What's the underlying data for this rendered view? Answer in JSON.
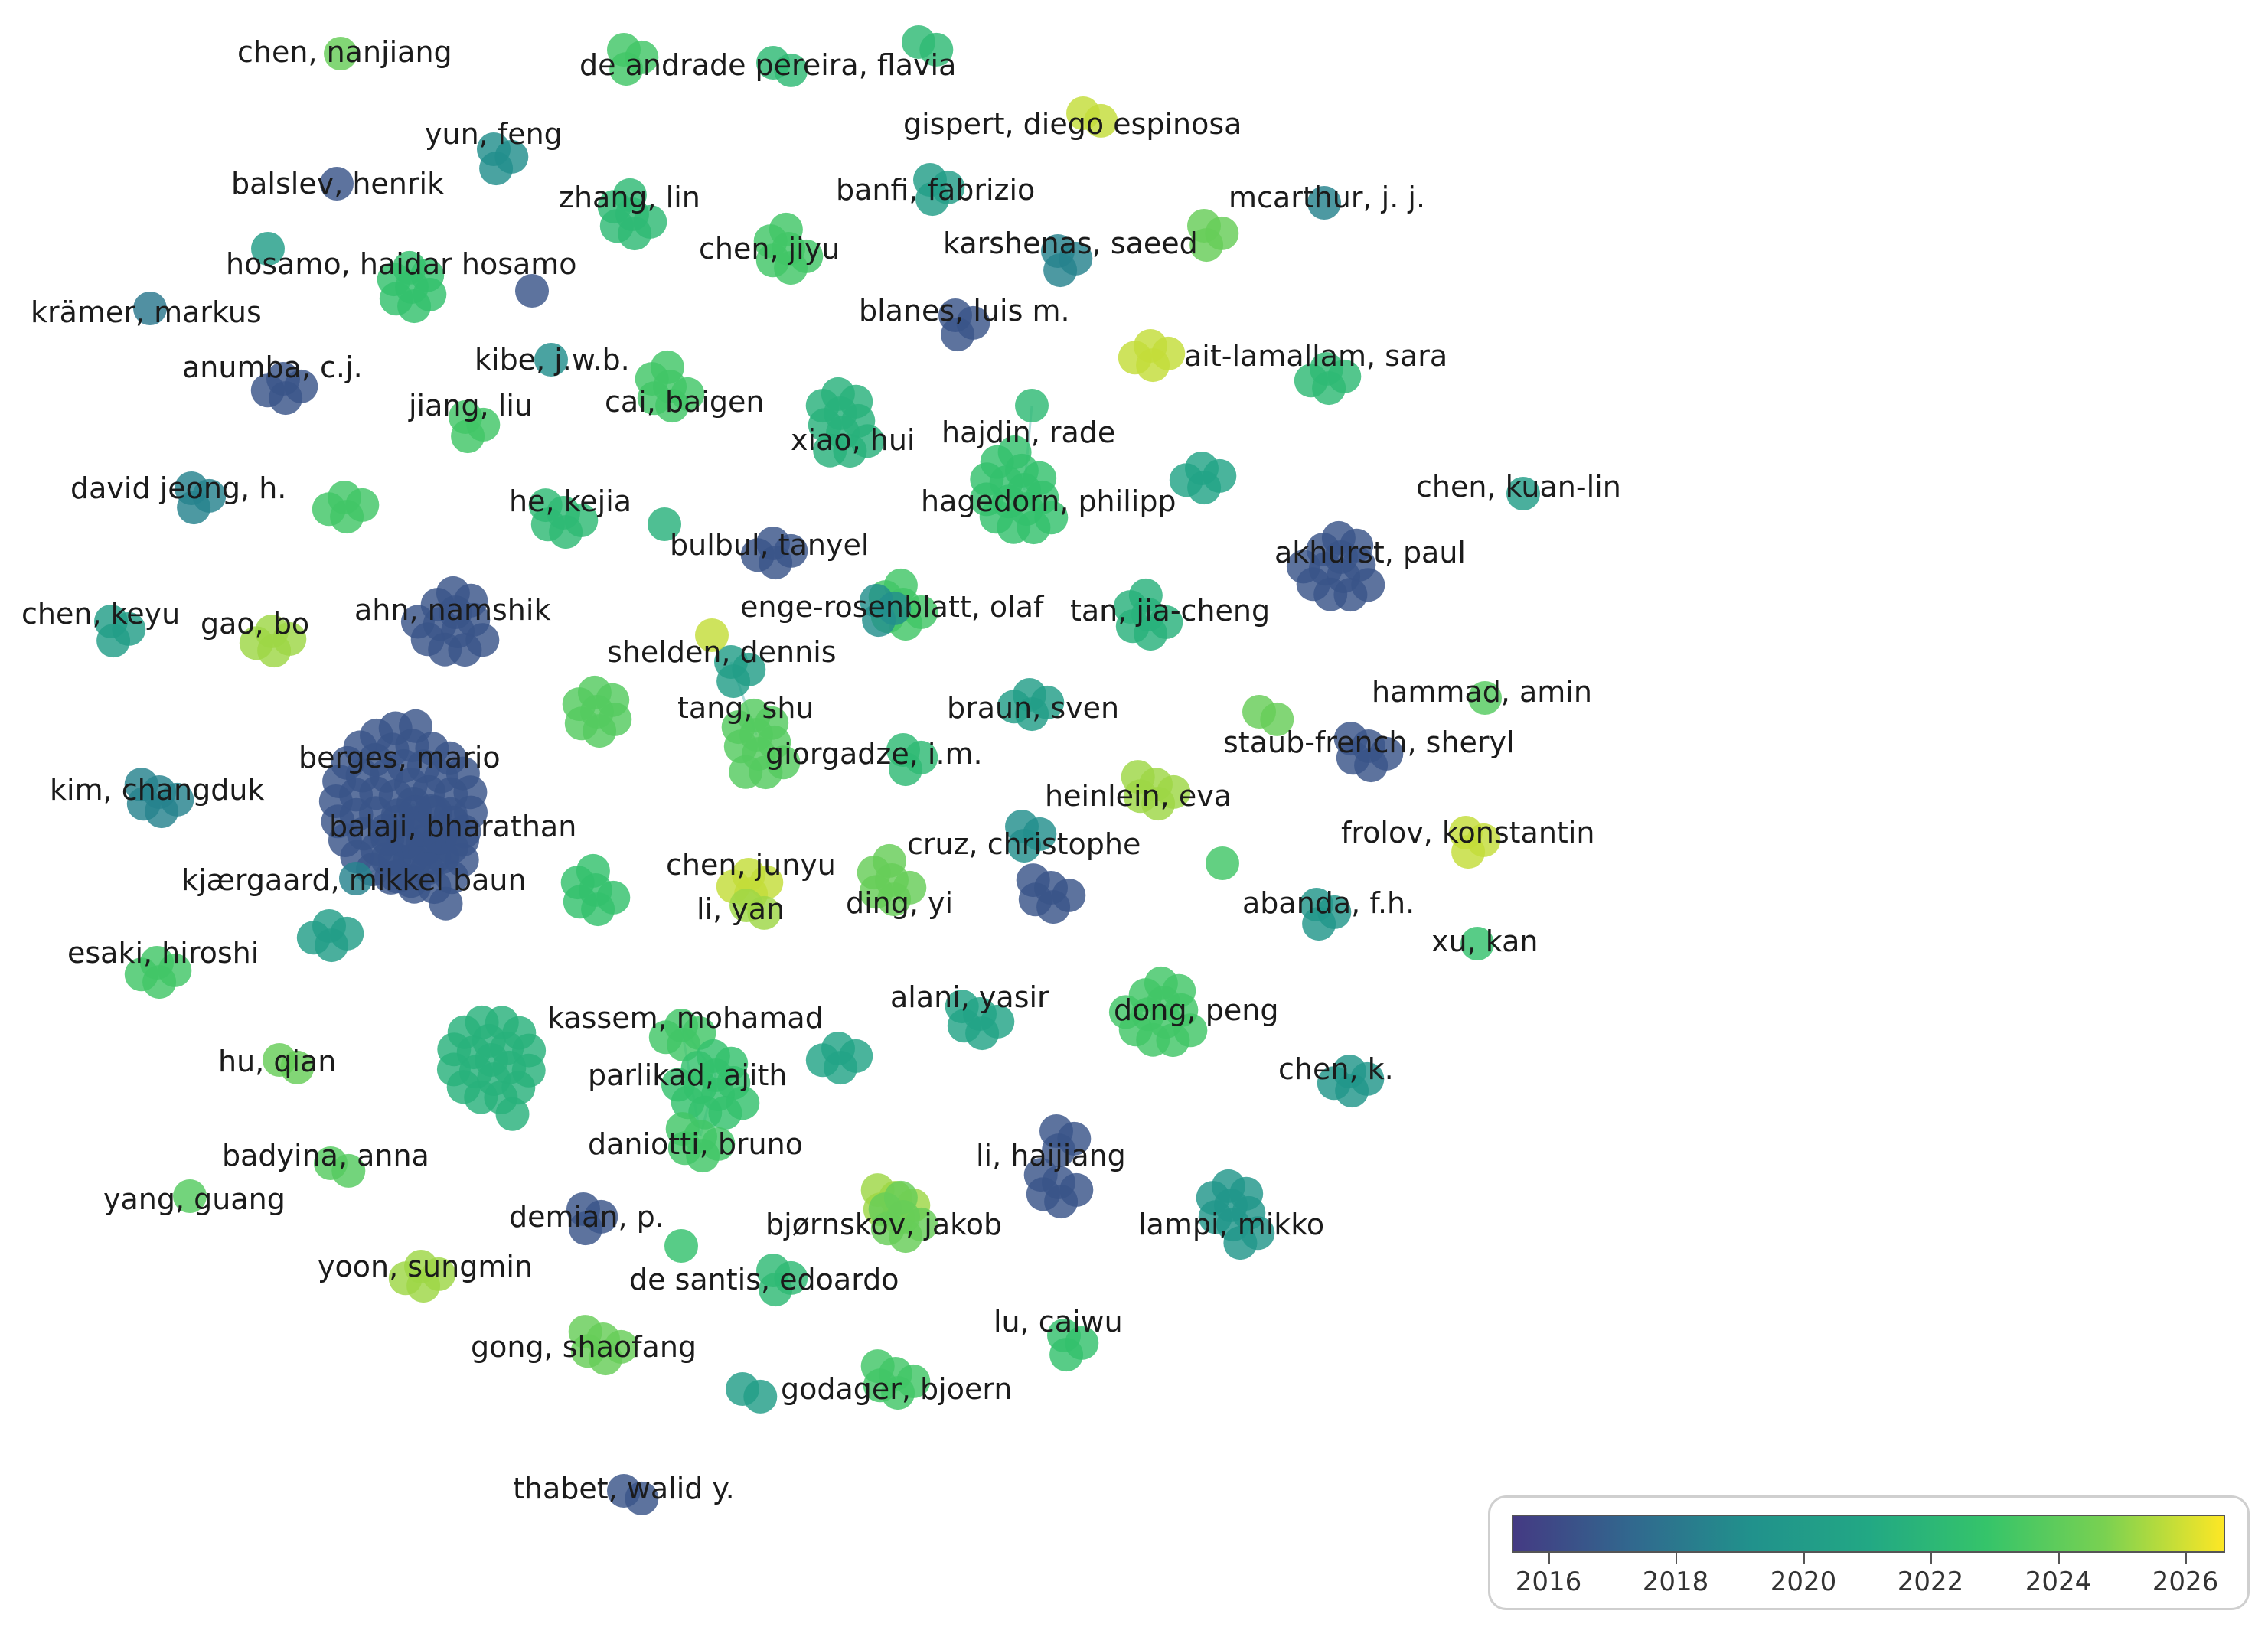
{
  "color_scale": {
    "min_year": 2015.5,
    "max_year": 2026.3,
    "stops": [
      "#443a83",
      "#31688e",
      "#21918c",
      "#22a884",
      "#35c46a",
      "#7ad151",
      "#fde725"
    ]
  },
  "legend": {
    "ticks": [
      "2016",
      "2018",
      "2020",
      "2022",
      "2024",
      "2026"
    ],
    "tick_years": [
      2016,
      2018,
      2020,
      2022,
      2024,
      2026
    ]
  },
  "nodes": [
    {
      "label": "chen, nanjiang",
      "year": 2024
    },
    {
      "label": "de andrade pereira, flavia",
      "year": 2023
    },
    {
      "label": "",
      "year": 2022
    },
    {
      "label": "",
      "year": 2022
    },
    {
      "label": "gispert, diego espinosa",
      "year": 2025.5
    },
    {
      "label": "yun, feng",
      "year": 2019
    },
    {
      "label": "balslev, henrik",
      "year": 2016.5
    },
    {
      "label": "zhang, lin",
      "year": 2022
    },
    {
      "label": "banfi, fabrizio",
      "year": 2020
    },
    {
      "label": "mcarthur, j. j.",
      "year": 2018.5
    },
    {
      "label": "",
      "year": 2024
    },
    {
      "label": "chen, jiyu",
      "year": 2023
    },
    {
      "label": "karshenas, saeed",
      "year": 2018.5
    },
    {
      "label": "",
      "year": 2020
    },
    {
      "label": "hosamo, haidar hosamo",
      "year": 2022.5
    },
    {
      "label": "",
      "year": 2016.5
    },
    {
      "label": "krämer, markus",
      "year": 2018
    },
    {
      "label": "blanes, luis m.",
      "year": 2016.5
    },
    {
      "label": "anumba, c.j.",
      "year": 2016.5
    },
    {
      "label": "kibe, j.w.b.",
      "year": 2019
    },
    {
      "label": "ait-lamallam, sara",
      "year": 2022
    },
    {
      "label": "",
      "year": 2025.5
    },
    {
      "label": "jiang, liu",
      "year": 2023
    },
    {
      "label": "cai, baigen",
      "year": 2023
    },
    {
      "label": "xiao, hui",
      "year": 2021.5
    },
    {
      "label": "hajdin, rade",
      "year": 2022
    },
    {
      "label": "david jeong, h.",
      "year": 2018.5
    },
    {
      "label": "",
      "year": 2023
    },
    {
      "label": "he, kejia",
      "year": 2022
    },
    {
      "label": "hagedorn, philipp",
      "year": 2022.5
    },
    {
      "label": "",
      "year": 2020.5
    },
    {
      "label": "chen, kuan-lin",
      "year": 2020
    },
    {
      "label": "",
      "year": 2021.5
    },
    {
      "label": "bulbul, tanyel",
      "year": 2016.5
    },
    {
      "label": "akhurst, paul",
      "year": 2016.5
    },
    {
      "label": "chen, keyu",
      "year": 2020
    },
    {
      "label": "gao, bo",
      "year": 2025
    },
    {
      "label": "ahn, namshik",
      "year": 2016.5
    },
    {
      "label": "enge-rosenblatt, olaf",
      "year": 2023
    },
    {
      "label": "",
      "year": 2019
    },
    {
      "label": "tan, jia-cheng",
      "year": 2021.5
    },
    {
      "label": "shelden, dennis",
      "year": 2020
    },
    {
      "label": "",
      "year": 2025.5
    },
    {
      "label": "hammad, amin",
      "year": 2023.5
    },
    {
      "label": "",
      "year": 2024
    },
    {
      "label": "tang, shu",
      "year": 2023.5
    },
    {
      "label": "braun, sven",
      "year": 2020
    },
    {
      "label": "giorgadze, i.m.",
      "year": 2022
    },
    {
      "label": "staub-french, sheryl",
      "year": 2016.5
    },
    {
      "label": "",
      "year": 2023.5
    },
    {
      "label": "berges, mario",
      "year": 2016.5
    },
    {
      "label": "kim, changduk",
      "year": 2018.5
    },
    {
      "label": "heinlein, eva",
      "year": 2025
    },
    {
      "label": "balaji, bharathan",
      "year": 2016.5
    },
    {
      "label": "frolov, konstantin",
      "year": 2025.5
    },
    {
      "label": "cruz, christophe",
      "year": 2016.5
    },
    {
      "label": "",
      "year": 2019
    },
    {
      "label": "chen, junyu",
      "year": 2025.5
    },
    {
      "label": "kjærgaard, mikkel baun",
      "year": 2018.5
    },
    {
      "label": "",
      "year": 2022.5
    },
    {
      "label": "li, yan",
      "year": 2025
    },
    {
      "label": "ding, yi",
      "year": 2024
    },
    {
      "label": "",
      "year": 2023
    },
    {
      "label": "abanda, f.h.",
      "year": 2019.5
    },
    {
      "label": "",
      "year": 2020
    },
    {
      "label": "xu, kan",
      "year": 2022.5
    },
    {
      "label": "esaki, hiroshi",
      "year": 2023
    },
    {
      "label": "alani, yasir",
      "year": 2020.5
    },
    {
      "label": "dong, peng",
      "year": 2023
    },
    {
      "label": "kassem, mohamad",
      "year": 2023
    },
    {
      "label": "",
      "year": 2021.5
    },
    {
      "label": "",
      "year": 2020.5
    },
    {
      "label": "hu, qian",
      "year": 2024
    },
    {
      "label": "parlikad, ajith",
      "year": 2022.5
    },
    {
      "label": "chen, k.",
      "year": 2019.5
    },
    {
      "label": "daniotti, bruno",
      "year": 2023
    },
    {
      "label": "",
      "year": 2016.5
    },
    {
      "label": "li, haijiang",
      "year": 2016.5
    },
    {
      "label": "badyina, anna",
      "year": 2023.5
    },
    {
      "label": "",
      "year": 2025
    },
    {
      "label": "yang, guang",
      "year": 2023.5
    },
    {
      "label": "demian, p.",
      "year": 2016.5
    },
    {
      "label": "bjørnskov, jakob",
      "year": 2024
    },
    {
      "label": "lampi, mikko",
      "year": 2019.5
    },
    {
      "label": "",
      "year": 2022.5
    },
    {
      "label": "yoon, sungmin",
      "year": 2025
    },
    {
      "label": "de santis, edoardo",
      "year": 2022
    },
    {
      "label": "lu, caiwu",
      "year": 2022.5
    },
    {
      "label": "gong, shaofang",
      "year": 2024
    },
    {
      "label": "",
      "year": 2020
    },
    {
      "label": "godager, bjoern",
      "year": 2023
    },
    {
      "label": "thabet, walid y.",
      "year": 2016.5
    }
  ]
}
